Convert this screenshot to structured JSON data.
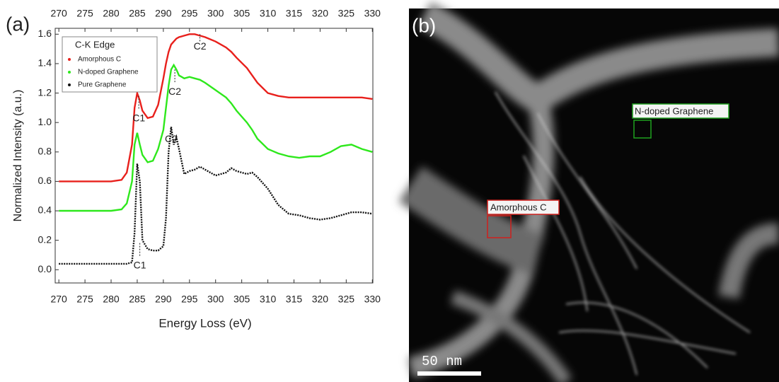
{
  "panel_labels": [
    "(a)",
    "(b)"
  ],
  "chart_data": {
    "type": "line",
    "x_label": "Energy Loss (eV)",
    "y_label": "Normalized Intensity (a.u.)",
    "legend_title": "C-K Edge",
    "legend": "upper left",
    "x": [
      270,
      272,
      274,
      276,
      278,
      280,
      282,
      283,
      284,
      284.5,
      285,
      285.5,
      286,
      287,
      288,
      289,
      290,
      290.5,
      291,
      291.5,
      292,
      292.5,
      293,
      294,
      295,
      296,
      297,
      298,
      300,
      302,
      303,
      304,
      306,
      307,
      308,
      310,
      312,
      314,
      316,
      318,
      320,
      322,
      324,
      326,
      328,
      330
    ],
    "series": [
      {
        "name": "Amorphous C",
        "color": "#e8201c",
        "values": [
          0.6,
          0.6,
          0.6,
          0.6,
          0.6,
          0.6,
          0.61,
          0.66,
          0.85,
          1.1,
          1.2,
          1.15,
          1.08,
          1.03,
          1.04,
          1.12,
          1.3,
          1.4,
          1.48,
          1.53,
          1.55,
          1.57,
          1.58,
          1.59,
          1.6,
          1.6,
          1.59,
          1.58,
          1.55,
          1.51,
          1.48,
          1.44,
          1.37,
          1.32,
          1.27,
          1.2,
          1.18,
          1.17,
          1.17,
          1.17,
          1.17,
          1.17,
          1.17,
          1.17,
          1.17,
          1.16
        ]
      },
      {
        "name": "N-doped Graphene",
        "color": "#2ee81c",
        "values": [
          0.4,
          0.4,
          0.4,
          0.4,
          0.4,
          0.4,
          0.41,
          0.45,
          0.6,
          0.85,
          0.93,
          0.85,
          0.78,
          0.73,
          0.74,
          0.82,
          0.95,
          1.1,
          1.25,
          1.36,
          1.39,
          1.36,
          1.32,
          1.3,
          1.31,
          1.3,
          1.29,
          1.27,
          1.22,
          1.17,
          1.13,
          1.08,
          1.0,
          0.95,
          0.89,
          0.82,
          0.79,
          0.77,
          0.76,
          0.77,
          0.77,
          0.8,
          0.84,
          0.85,
          0.82,
          0.8
        ]
      },
      {
        "name": "Pure Graphene",
        "color": "#111111",
        "values": [
          0.04,
          0.04,
          0.04,
          0.04,
          0.04,
          0.04,
          0.04,
          0.04,
          0.05,
          0.25,
          0.72,
          0.6,
          0.2,
          0.14,
          0.13,
          0.13,
          0.16,
          0.35,
          0.8,
          0.97,
          0.85,
          0.9,
          0.82,
          0.65,
          0.67,
          0.68,
          0.7,
          0.68,
          0.64,
          0.66,
          0.69,
          0.67,
          0.65,
          0.66,
          0.63,
          0.55,
          0.44,
          0.38,
          0.37,
          0.35,
          0.34,
          0.35,
          0.37,
          0.39,
          0.39,
          0.38
        ]
      }
    ],
    "annotations": [
      "C2",
      "C2",
      "C1",
      "C2",
      "C1"
    ],
    "xlim": [
      269.3,
      330.1
    ],
    "ylim": [
      -0.09,
      1.64
    ],
    "xticks": [
      270,
      275,
      280,
      285,
      290,
      295,
      300,
      305,
      310,
      315,
      320,
      325,
      330
    ],
    "yticks": [
      {
        "value": 0,
        "label": "0.0"
      },
      0.2,
      0.4,
      0.6,
      0.8,
      {
        "value": 1,
        "label": "1.0"
      },
      1.2,
      1.4,
      1.6
    ]
  },
  "image": {
    "labels": [
      "N-doped Graphene",
      "Amorphous C"
    ],
    "scale_bar": "50 nm"
  }
}
